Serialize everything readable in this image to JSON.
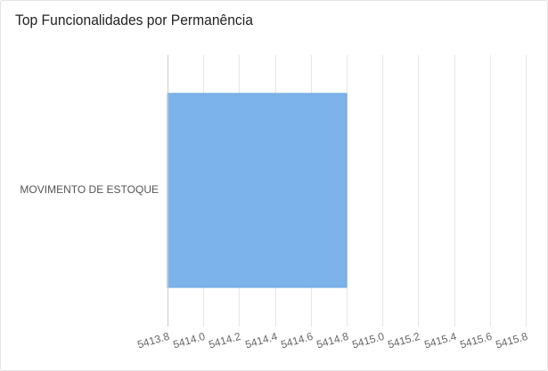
{
  "card": {
    "title": "Top Funcionalidades por Permanência"
  },
  "colors": {
    "bar": "#7cb3ea",
    "bar_stroke": "#6aa5e0",
    "grid": "#e6e6e6",
    "axis": "#c8c8c8",
    "tick_text": "#666666",
    "category_text": "#555555"
  },
  "chart_data": {
    "type": "bar",
    "orientation": "horizontal",
    "title": "Top Funcionalidades por Permanência",
    "categories": [
      "MOVIMENTO DE ESTOQUE"
    ],
    "values": [
      5414.8
    ],
    "xlim": [
      5413.8,
      5415.8
    ],
    "x_ticks": [
      "5413.8",
      "5414.0",
      "5414.2",
      "5414.4",
      "5414.6",
      "5414.8",
      "5415.0",
      "5415.2",
      "5415.4",
      "5415.6",
      "5415.8"
    ],
    "xlabel": "",
    "ylabel": "",
    "grid": true,
    "legend": "none"
  }
}
